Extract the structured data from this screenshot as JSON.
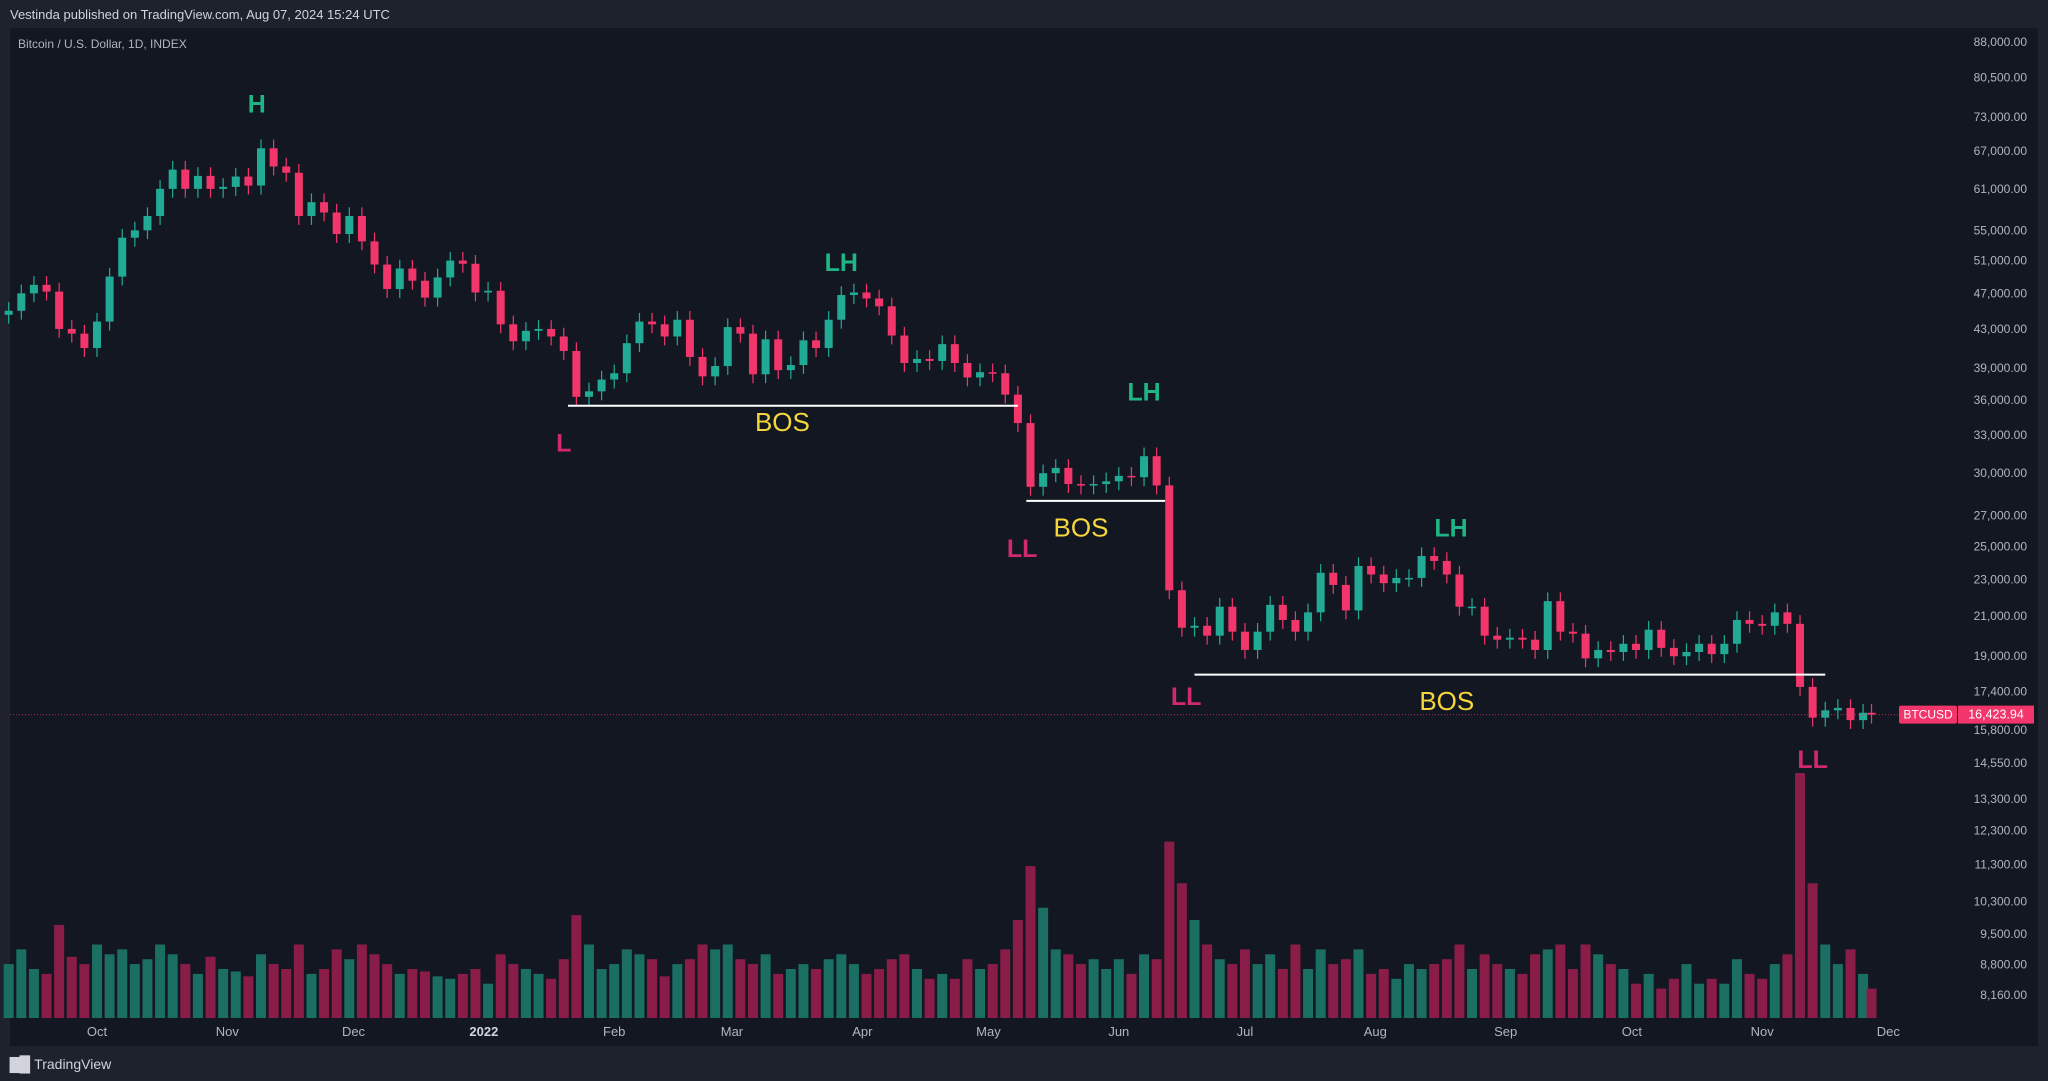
{
  "header": {
    "published": "Vestinda published on TradingView.com, Aug 07, 2024 15:24 UTC"
  },
  "footer": {
    "brand": "TradingView",
    "logo_text": "TV"
  },
  "colors": {
    "up": "#22ab94",
    "down": "#f2366b",
    "vol_up": "#1b6e62",
    "vol_down": "#8a1d47",
    "high_label": "#1fb585",
    "low_label": "#d02a6c",
    "bos_text": "#f5d63d",
    "bos_line": "#ffffff",
    "price_tag": "#f2366b"
  },
  "chart_data": {
    "type": "candlestick",
    "title": "Bitcoin / U.S. Dollar, 1D, INDEX",
    "symbol": "BTCUSD",
    "last_price": 16423.94,
    "last_price_label": "16,423.94",
    "y_scale": "log",
    "ylim": [
      8160,
      88000
    ],
    "y_ticks": [
      "88,000.00",
      "80,500.00",
      "73,000.00",
      "67,000.00",
      "61,000.00",
      "55,000.00",
      "51,000.00",
      "47,000.00",
      "43,000.00",
      "39,000.00",
      "36,000.00",
      "33,000.00",
      "30,000.00",
      "27,000.00",
      "25,000.00",
      "23,000.00",
      "21,000.00",
      "19,000.00",
      "17,400.00",
      "15,800.00",
      "14,550.00",
      "13,300.00",
      "12,300.00",
      "11,300.00",
      "10,300.00",
      "9,500.00",
      "8,800.00",
      "8,160.00"
    ],
    "x_ticks": [
      {
        "label": "Oct",
        "date": "2021-10-01"
      },
      {
        "label": "Nov",
        "date": "2021-11-01"
      },
      {
        "label": "Dec",
        "date": "2021-12-01"
      },
      {
        "label": "2022",
        "date": "2022-01-01",
        "bold": true
      },
      {
        "label": "Feb",
        "date": "2022-02-01"
      },
      {
        "label": "Mar",
        "date": "2022-03-01"
      },
      {
        "label": "Apr",
        "date": "2022-04-01"
      },
      {
        "label": "May",
        "date": "2022-05-01"
      },
      {
        "label": "Jun",
        "date": "2022-06-01"
      },
      {
        "label": "Jul",
        "date": "2022-07-01"
      },
      {
        "label": "Aug",
        "date": "2022-08-01"
      },
      {
        "label": "Sep",
        "date": "2022-09-01"
      },
      {
        "label": "Oct",
        "date": "2022-10-01"
      },
      {
        "label": "Nov",
        "date": "2022-11-01"
      },
      {
        "label": "Dec",
        "date": "2022-12-01"
      }
    ],
    "candles_columns": [
      "date",
      "close",
      "volume_relative"
    ],
    "candles": [
      [
        "2021-09-10",
        45000,
        22
      ],
      [
        "2021-09-13",
        47000,
        28
      ],
      [
        "2021-09-16",
        48000,
        20
      ],
      [
        "2021-09-19",
        47200,
        18
      ],
      [
        "2021-09-22",
        43000,
        38
      ],
      [
        "2021-09-25",
        42500,
        25
      ],
      [
        "2021-09-28",
        41000,
        22
      ],
      [
        "2021-10-01",
        43800,
        30
      ],
      [
        "2021-10-04",
        49000,
        26
      ],
      [
        "2021-10-07",
        54000,
        28
      ],
      [
        "2021-10-10",
        55000,
        22
      ],
      [
        "2021-10-13",
        57000,
        24
      ],
      [
        "2021-10-16",
        61000,
        30
      ],
      [
        "2021-10-19",
        64000,
        26
      ],
      [
        "2021-10-22",
        61000,
        22
      ],
      [
        "2021-10-25",
        63000,
        18
      ],
      [
        "2021-10-28",
        61000,
        25
      ],
      [
        "2021-10-31",
        61300,
        20
      ],
      [
        "2021-11-03",
        62900,
        19
      ],
      [
        "2021-11-06",
        61500,
        17
      ],
      [
        "2021-11-09",
        67500,
        26
      ],
      [
        "2021-11-12",
        64500,
        22
      ],
      [
        "2021-11-15",
        63500,
        20
      ],
      [
        "2021-11-18",
        57000,
        30
      ],
      [
        "2021-11-21",
        59000,
        18
      ],
      [
        "2021-11-24",
        57500,
        20
      ],
      [
        "2021-11-27",
        54500,
        28
      ],
      [
        "2021-11-30",
        57000,
        24
      ],
      [
        "2021-12-03",
        53500,
        30
      ],
      [
        "2021-12-06",
        50500,
        26
      ],
      [
        "2021-12-09",
        47500,
        22
      ],
      [
        "2021-12-12",
        50000,
        18
      ],
      [
        "2021-12-15",
        48500,
        20
      ],
      [
        "2021-12-18",
        46500,
        19
      ],
      [
        "2021-12-21",
        48900,
        17
      ],
      [
        "2021-12-24",
        51000,
        16
      ],
      [
        "2021-12-27",
        50600,
        18
      ],
      [
        "2021-12-30",
        47100,
        20
      ],
      [
        "2022-01-02",
        47300,
        14
      ],
      [
        "2022-01-05",
        43500,
        26
      ],
      [
        "2022-01-08",
        41700,
        22
      ],
      [
        "2022-01-11",
        42800,
        20
      ],
      [
        "2022-01-14",
        43000,
        18
      ],
      [
        "2022-01-17",
        42200,
        16
      ],
      [
        "2022-01-20",
        40700,
        24
      ],
      [
        "2022-01-23",
        36300,
        42
      ],
      [
        "2022-01-26",
        36800,
        30
      ],
      [
        "2022-01-29",
        37900,
        20
      ],
      [
        "2022-02-01",
        38500,
        22
      ],
      [
        "2022-02-04",
        41500,
        28
      ],
      [
        "2022-02-07",
        43800,
        26
      ],
      [
        "2022-02-10",
        43500,
        24
      ],
      [
        "2022-02-13",
        42200,
        17
      ],
      [
        "2022-02-16",
        44000,
        22
      ],
      [
        "2022-02-19",
        40100,
        24
      ],
      [
        "2022-02-22",
        38200,
        30
      ],
      [
        "2022-02-25",
        39200,
        28
      ],
      [
        "2022-02-28",
        43200,
        30
      ],
      [
        "2022-03-03",
        42500,
        24
      ],
      [
        "2022-03-06",
        38400,
        22
      ],
      [
        "2022-03-09",
        41900,
        26
      ],
      [
        "2022-03-12",
        38800,
        18
      ],
      [
        "2022-03-15",
        39300,
        20
      ],
      [
        "2022-03-18",
        41800,
        22
      ],
      [
        "2022-03-21",
        41000,
        20
      ],
      [
        "2022-03-24",
        44000,
        24
      ],
      [
        "2022-03-27",
        46800,
        26
      ],
      [
        "2022-03-30",
        47100,
        22
      ],
      [
        "2022-04-02",
        46400,
        18
      ],
      [
        "2022-04-05",
        45500,
        20
      ],
      [
        "2022-04-08",
        42300,
        24
      ],
      [
        "2022-04-11",
        39500,
        26
      ],
      [
        "2022-04-14",
        39900,
        20
      ],
      [
        "2022-04-17",
        39700,
        16
      ],
      [
        "2022-04-20",
        41400,
        18
      ],
      [
        "2022-04-23",
        39500,
        16
      ],
      [
        "2022-04-26",
        38100,
        24
      ],
      [
        "2022-04-29",
        38600,
        20
      ],
      [
        "2022-05-02",
        38500,
        22
      ],
      [
        "2022-05-05",
        36500,
        28
      ],
      [
        "2022-05-08",
        34000,
        40
      ],
      [
        "2022-05-11",
        29000,
        62
      ],
      [
        "2022-05-14",
        30000,
        45
      ],
      [
        "2022-05-17",
        30400,
        28
      ],
      [
        "2022-05-20",
        29200,
        26
      ],
      [
        "2022-05-23",
        29100,
        22
      ],
      [
        "2022-05-26",
        29200,
        24
      ],
      [
        "2022-05-29",
        29400,
        20
      ],
      [
        "2022-06-01",
        29800,
        24
      ],
      [
        "2022-06-04",
        29700,
        18
      ],
      [
        "2022-06-07",
        31300,
        26
      ],
      [
        "2022-06-10",
        29100,
        24
      ],
      [
        "2022-06-13",
        22400,
        72
      ],
      [
        "2022-06-16",
        20400,
        55
      ],
      [
        "2022-06-19",
        20500,
        40
      ],
      [
        "2022-06-22",
        20000,
        30
      ],
      [
        "2022-06-25",
        21500,
        24
      ],
      [
        "2022-06-28",
        20200,
        22
      ],
      [
        "2022-07-01",
        19300,
        28
      ],
      [
        "2022-07-04",
        20200,
        22
      ],
      [
        "2022-07-07",
        21600,
        26
      ],
      [
        "2022-07-10",
        20800,
        20
      ],
      [
        "2022-07-13",
        20200,
        30
      ],
      [
        "2022-07-16",
        21200,
        20
      ],
      [
        "2022-07-19",
        23400,
        28
      ],
      [
        "2022-07-22",
        22700,
        22
      ],
      [
        "2022-07-25",
        21300,
        24
      ],
      [
        "2022-07-28",
        23800,
        28
      ],
      [
        "2022-07-31",
        23300,
        18
      ],
      [
        "2022-08-03",
        22800,
        20
      ],
      [
        "2022-08-06",
        23100,
        16
      ],
      [
        "2022-08-09",
        23100,
        22
      ],
      [
        "2022-08-12",
        24400,
        20
      ],
      [
        "2022-08-15",
        24100,
        22
      ],
      [
        "2022-08-18",
        23300,
        24
      ],
      [
        "2022-08-21",
        21500,
        30
      ],
      [
        "2022-08-24",
        21500,
        20
      ],
      [
        "2022-08-27",
        20000,
        26
      ],
      [
        "2022-08-30",
        19800,
        22
      ],
      [
        "2022-09-02",
        19900,
        20
      ],
      [
        "2022-09-05",
        19800,
        18
      ],
      [
        "2022-09-08",
        19300,
        26
      ],
      [
        "2022-09-11",
        21800,
        28
      ],
      [
        "2022-09-14",
        20200,
        30
      ],
      [
        "2022-09-17",
        20100,
        20
      ],
      [
        "2022-09-20",
        18900,
        30
      ],
      [
        "2022-09-23",
        19300,
        26
      ],
      [
        "2022-09-26",
        19200,
        22
      ],
      [
        "2022-09-29",
        19600,
        20
      ],
      [
        "2022-10-02",
        19300,
        14
      ],
      [
        "2022-10-05",
        20300,
        18
      ],
      [
        "2022-10-08",
        19400,
        12
      ],
      [
        "2022-10-11",
        19000,
        16
      ],
      [
        "2022-10-14",
        19200,
        22
      ],
      [
        "2022-10-17",
        19600,
        14
      ],
      [
        "2022-10-20",
        19100,
        16
      ],
      [
        "2022-10-23",
        19600,
        14
      ],
      [
        "2022-10-26",
        20800,
        24
      ],
      [
        "2022-10-29",
        20600,
        18
      ],
      [
        "2022-11-01",
        20500,
        16
      ],
      [
        "2022-11-04",
        21200,
        22
      ],
      [
        "2022-11-07",
        20600,
        26
      ],
      [
        "2022-11-10",
        17600,
        100
      ],
      [
        "2022-11-13",
        16300,
        55
      ],
      [
        "2022-11-16",
        16600,
        30
      ],
      [
        "2022-11-19",
        16700,
        22
      ],
      [
        "2022-11-22",
        16200,
        28
      ],
      [
        "2022-11-25",
        16500,
        18
      ],
      [
        "2022-11-27",
        16424,
        12
      ]
    ],
    "annotations": [
      {
        "text": "H",
        "date": "2021-11-08",
        "price": 75500,
        "kind": "high"
      },
      {
        "text": "L",
        "date": "2022-01-20",
        "price": 32400,
        "kind": "low"
      },
      {
        "text": "LH",
        "date": "2022-03-27",
        "price": 50800,
        "kind": "high"
      },
      {
        "text": "BOS",
        "date": "2022-03-13",
        "price": 34100,
        "kind": "bos"
      },
      {
        "text": "LL",
        "date": "2022-05-09",
        "price": 24900,
        "kind": "low"
      },
      {
        "text": "BOS",
        "date": "2022-05-23",
        "price": 26200,
        "kind": "bos"
      },
      {
        "text": "LH",
        "date": "2022-06-07",
        "price": 36800,
        "kind": "high"
      },
      {
        "text": "LL",
        "date": "2022-06-17",
        "price": 17200,
        "kind": "low"
      },
      {
        "text": "LH",
        "date": "2022-08-19",
        "price": 26200,
        "kind": "high"
      },
      {
        "text": "BOS",
        "date": "2022-08-18",
        "price": 17000,
        "kind": "bos"
      },
      {
        "text": "LL",
        "date": "2022-11-13",
        "price": 14700,
        "kind": "low"
      }
    ],
    "bos_lines": [
      {
        "from": "2022-01-21",
        "to": "2022-05-08",
        "price": 35500
      },
      {
        "from": "2022-05-10",
        "to": "2022-06-12",
        "price": 28000
      },
      {
        "from": "2022-06-19",
        "to": "2022-11-16",
        "price": 18150
      }
    ]
  }
}
